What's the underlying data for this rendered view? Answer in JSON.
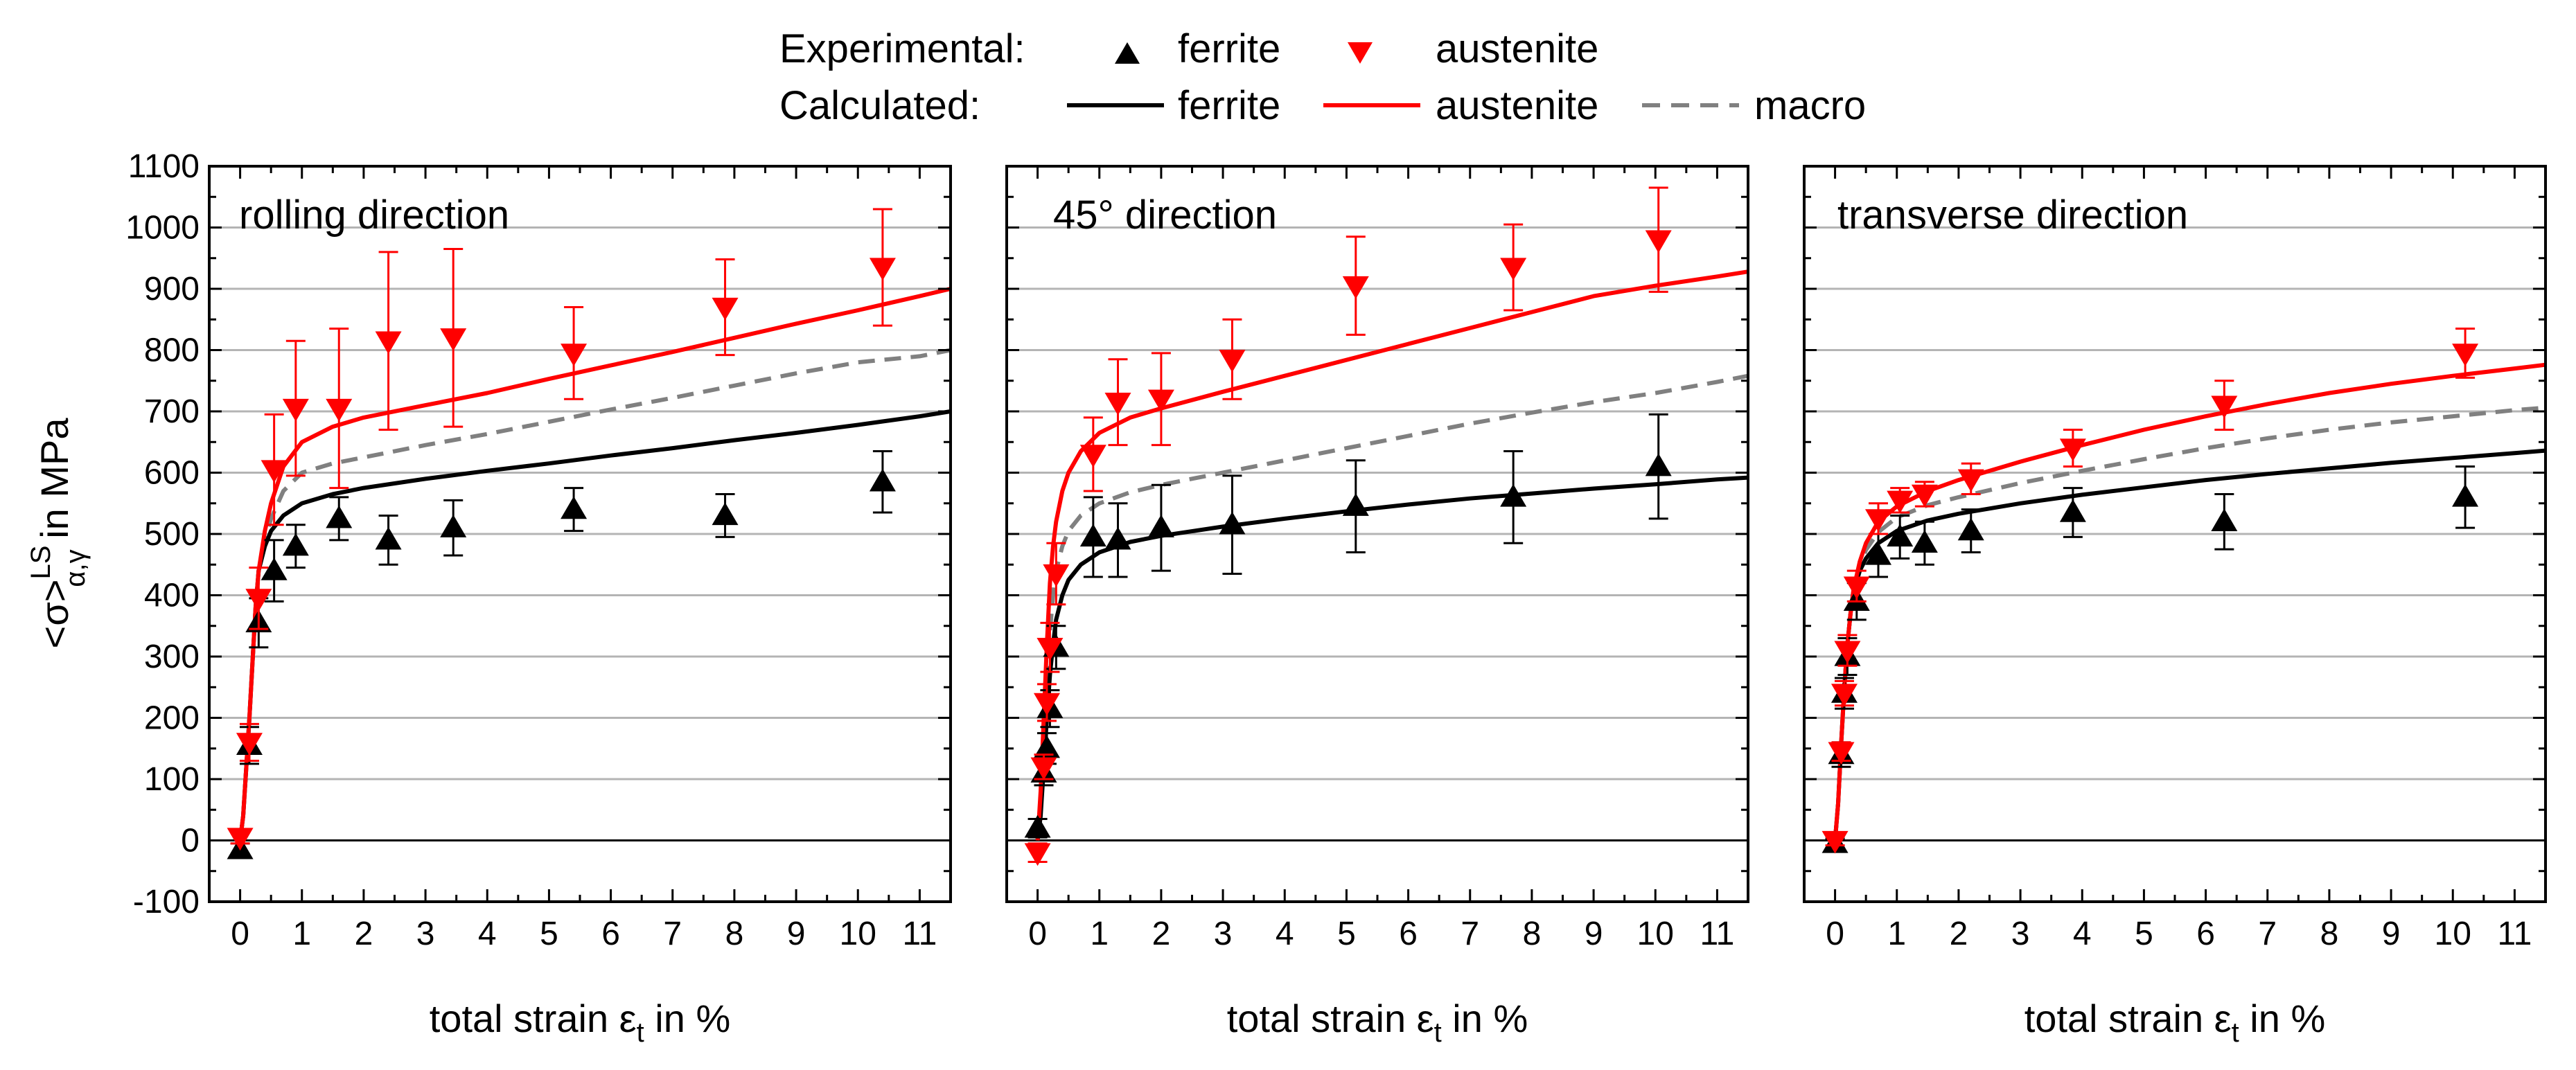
{
  "legend": {
    "experimental_label": "Experimental:",
    "calculated_label": "Calculated:",
    "exp_ferrite": "ferrite",
    "exp_austenite": "austenite",
    "calc_ferrite": "ferrite",
    "calc_austenite": "austenite",
    "calc_macro": "macro"
  },
  "colors": {
    "ferrite": "#000000",
    "austenite": "#ff0000",
    "macro": "#808080",
    "grid": "#b4b4b4"
  },
  "y_axis_label": {
    "main": "<σ>",
    "superscript": "LS",
    "subscript": "α,γ",
    "suffix": " in MPa"
  },
  "x_axis_label": {
    "prefix": "total strain ε",
    "subscript": "t",
    "suffix": " in %"
  },
  "chart_data": [
    {
      "type": "scatter",
      "title": "rolling direction",
      "xlabel": "total strain ε_t in %",
      "ylabel": "<σ>^LS_α,γ in MPa",
      "xlim": [
        -0.5,
        11.5
      ],
      "ylim": [
        -100,
        1100
      ],
      "xticks": [
        0,
        1,
        2,
        3,
        4,
        5,
        6,
        7,
        8,
        9,
        10,
        11
      ],
      "yticks": [
        -100,
        0,
        100,
        200,
        300,
        400,
        500,
        600,
        700,
        800,
        900,
        1000,
        1100
      ],
      "grid": true,
      "experimental": {
        "ferrite": [
          {
            "x": 0.0,
            "y": -15,
            "err": 10
          },
          {
            "x": 0.15,
            "y": 155,
            "err": 30
          },
          {
            "x": 0.3,
            "y": 355,
            "err": 40
          },
          {
            "x": 0.55,
            "y": 440,
            "err": 50
          },
          {
            "x": 0.9,
            "y": 480,
            "err": 35
          },
          {
            "x": 1.6,
            "y": 525,
            "err": 35
          },
          {
            "x": 2.4,
            "y": 490,
            "err": 40
          },
          {
            "x": 3.45,
            "y": 510,
            "err": 45
          },
          {
            "x": 5.4,
            "y": 540,
            "err": 35
          },
          {
            "x": 7.85,
            "y": 530,
            "err": 35
          },
          {
            "x": 10.4,
            "y": 585,
            "err": 50
          }
        ],
        "austenite": [
          {
            "x": 0.0,
            "y": 5,
            "err": 10
          },
          {
            "x": 0.15,
            "y": 160,
            "err": 30
          },
          {
            "x": 0.3,
            "y": 395,
            "err": 50
          },
          {
            "x": 0.55,
            "y": 605,
            "err": 90
          },
          {
            "x": 0.9,
            "y": 705,
            "err": 110
          },
          {
            "x": 1.6,
            "y": 705,
            "err": 130
          },
          {
            "x": 2.4,
            "y": 815,
            "err": 145
          },
          {
            "x": 3.45,
            "y": 820,
            "err": 145
          },
          {
            "x": 5.4,
            "y": 795,
            "err": 75
          },
          {
            "x": 7.85,
            "y": 870,
            "err": 78
          },
          {
            "x": 10.4,
            "y": 935,
            "err": 95
          }
        ]
      },
      "calculated": {
        "ferrite": {
          "x": [
            0,
            0.05,
            0.1,
            0.15,
            0.2,
            0.25,
            0.3,
            0.4,
            0.5,
            0.7,
            1,
            1.5,
            2,
            3,
            4,
            5,
            6,
            7,
            8,
            9,
            10,
            11,
            11.5
          ],
          "y": [
            0,
            40,
            120,
            200,
            290,
            380,
            440,
            480,
            505,
            530,
            550,
            565,
            575,
            590,
            603,
            615,
            628,
            640,
            653,
            665,
            678,
            692,
            700
          ]
        },
        "austenite": {
          "x": [
            0,
            0.05,
            0.1,
            0.15,
            0.2,
            0.25,
            0.3,
            0.4,
            0.5,
            0.7,
            1,
            1.5,
            2,
            3,
            4,
            5,
            6,
            7,
            8,
            9,
            10,
            11,
            11.5
          ],
          "y": [
            0,
            40,
            120,
            200,
            290,
            380,
            440,
            505,
            550,
            610,
            650,
            675,
            690,
            710,
            730,
            753,
            775,
            797,
            820,
            843,
            865,
            888,
            900
          ]
        },
        "macro": {
          "x": [
            0,
            0.05,
            0.1,
            0.15,
            0.2,
            0.25,
            0.3,
            0.4,
            0.5,
            0.7,
            1,
            1.5,
            2,
            3,
            4,
            5,
            6,
            7,
            8,
            9,
            10,
            11,
            11.5
          ],
          "y": [
            0,
            40,
            120,
            200,
            290,
            380,
            440,
            490,
            525,
            570,
            600,
            615,
            625,
            645,
            663,
            683,
            703,
            722,
            742,
            762,
            780,
            790,
            800
          ]
        }
      }
    },
    {
      "type": "scatter",
      "title": "45° direction",
      "xlabel": "total strain ε_t in %",
      "ylabel": "<σ>^LS_α,γ in MPa",
      "xlim": [
        -0.5,
        11.5
      ],
      "ylim": [
        -100,
        1100
      ],
      "xticks": [
        0,
        1,
        2,
        3,
        4,
        5,
        6,
        7,
        8,
        9,
        10,
        11
      ],
      "yticks": [
        -100,
        0,
        100,
        200,
        300,
        400,
        500,
        600,
        700,
        800,
        900,
        1000,
        1100
      ],
      "grid": true,
      "experimental": {
        "ferrite": [
          {
            "x": 0.0,
            "y": 20,
            "err": 15
          },
          {
            "x": 0.1,
            "y": 110,
            "err": 20
          },
          {
            "x": 0.15,
            "y": 150,
            "err": 25
          },
          {
            "x": 0.2,
            "y": 215,
            "err": 30
          },
          {
            "x": 0.3,
            "y": 315,
            "err": 35
          },
          {
            "x": 0.9,
            "y": 495,
            "err": 65
          },
          {
            "x": 1.3,
            "y": 490,
            "err": 60
          },
          {
            "x": 2.0,
            "y": 510,
            "err": 70
          },
          {
            "x": 3.15,
            "y": 515,
            "err": 80
          },
          {
            "x": 5.15,
            "y": 545,
            "err": 75
          },
          {
            "x": 7.7,
            "y": 560,
            "err": 75
          },
          {
            "x": 10.05,
            "y": 610,
            "err": 85
          }
        ],
        "austenite": [
          {
            "x": 0.0,
            "y": -20,
            "err": 15
          },
          {
            "x": 0.1,
            "y": 120,
            "err": 20
          },
          {
            "x": 0.15,
            "y": 225,
            "err": 30
          },
          {
            "x": 0.2,
            "y": 315,
            "err": 40
          },
          {
            "x": 0.3,
            "y": 435,
            "err": 50
          },
          {
            "x": 0.9,
            "y": 630,
            "err": 60
          },
          {
            "x": 1.3,
            "y": 715,
            "err": 70
          },
          {
            "x": 2.0,
            "y": 720,
            "err": 75
          },
          {
            "x": 3.15,
            "y": 785,
            "err": 65
          },
          {
            "x": 5.15,
            "y": 905,
            "err": 80
          },
          {
            "x": 7.7,
            "y": 935,
            "err": 70
          },
          {
            "x": 10.05,
            "y": 980,
            "err": 85
          }
        ]
      },
      "calculated": {
        "ferrite": {
          "x": [
            0,
            0.05,
            0.1,
            0.15,
            0.2,
            0.25,
            0.3,
            0.4,
            0.5,
            0.7,
            1,
            1.5,
            2,
            3,
            4,
            5,
            6,
            7,
            8,
            9,
            10,
            11,
            11.5
          ],
          "y": [
            0,
            40,
            120,
            200,
            270,
            320,
            360,
            400,
            425,
            450,
            470,
            487,
            497,
            512,
            525,
            537,
            548,
            558,
            566,
            574,
            581,
            589,
            592
          ]
        },
        "austenite": {
          "x": [
            0,
            0.05,
            0.1,
            0.15,
            0.2,
            0.25,
            0.3,
            0.4,
            0.5,
            0.7,
            1,
            1.5,
            2,
            3,
            4,
            5,
            6,
            7,
            8,
            9,
            10,
            11,
            11.5
          ],
          "y": [
            0,
            80,
            200,
            320,
            420,
            480,
            520,
            570,
            600,
            635,
            665,
            690,
            705,
            732,
            758,
            784,
            810,
            836,
            862,
            888,
            905,
            920,
            928
          ]
        },
        "macro": {
          "x": [
            0,
            0.05,
            0.1,
            0.15,
            0.2,
            0.25,
            0.3,
            0.4,
            0.5,
            0.7,
            1,
            1.5,
            2,
            3,
            4,
            5,
            6,
            7,
            8,
            9,
            10,
            11,
            11.5
          ],
          "y": [
            0,
            60,
            160,
            260,
            340,
            400,
            440,
            480,
            505,
            530,
            550,
            568,
            580,
            600,
            620,
            640,
            660,
            680,
            698,
            715,
            730,
            748,
            758
          ]
        }
      }
    },
    {
      "type": "scatter",
      "title": "transverse direction",
      "xlabel": "total strain ε_t in %",
      "ylabel": "<σ>^LS_α,γ in MPa",
      "xlim": [
        -0.5,
        11.5
      ],
      "ylim": [
        -100,
        1100
      ],
      "xticks": [
        0,
        1,
        2,
        3,
        4,
        5,
        6,
        7,
        8,
        9,
        10,
        11
      ],
      "yticks": [
        -100,
        0,
        100,
        200,
        300,
        400,
        500,
        600,
        700,
        800,
        900,
        1000,
        1100
      ],
      "grid": true,
      "experimental": {
        "ferrite": [
          {
            "x": 0.0,
            "y": -5,
            "err": 8
          },
          {
            "x": 0.1,
            "y": 140,
            "err": 20
          },
          {
            "x": 0.15,
            "y": 240,
            "err": 25
          },
          {
            "x": 0.2,
            "y": 300,
            "err": 30
          },
          {
            "x": 0.35,
            "y": 390,
            "err": 30
          },
          {
            "x": 0.7,
            "y": 465,
            "err": 35
          },
          {
            "x": 1.05,
            "y": 495,
            "err": 35
          },
          {
            "x": 1.45,
            "y": 485,
            "err": 35
          },
          {
            "x": 2.2,
            "y": 505,
            "err": 35
          },
          {
            "x": 3.85,
            "y": 535,
            "err": 40
          },
          {
            "x": 6.3,
            "y": 520,
            "err": 45
          },
          {
            "x": 10.2,
            "y": 560,
            "err": 50
          }
        ],
        "austenite": [
          {
            "x": 0.0,
            "y": 0,
            "err": 8
          },
          {
            "x": 0.1,
            "y": 145,
            "err": 15
          },
          {
            "x": 0.15,
            "y": 240,
            "err": 20
          },
          {
            "x": 0.2,
            "y": 310,
            "err": 25
          },
          {
            "x": 0.35,
            "y": 415,
            "err": 25
          },
          {
            "x": 0.7,
            "y": 525,
            "err": 25
          },
          {
            "x": 1.05,
            "y": 555,
            "err": 20
          },
          {
            "x": 1.45,
            "y": 565,
            "err": 20
          },
          {
            "x": 2.2,
            "y": 590,
            "err": 25
          },
          {
            "x": 3.85,
            "y": 640,
            "err": 30
          },
          {
            "x": 6.3,
            "y": 710,
            "err": 40
          },
          {
            "x": 10.2,
            "y": 795,
            "err": 40
          }
        ]
      },
      "calculated": {
        "ferrite": {
          "x": [
            0,
            0.05,
            0.1,
            0.15,
            0.2,
            0.25,
            0.3,
            0.4,
            0.5,
            0.7,
            1,
            1.5,
            2,
            3,
            4,
            5,
            6,
            7,
            8,
            9,
            10,
            11,
            11.5
          ],
          "y": [
            0,
            60,
            160,
            250,
            320,
            370,
            405,
            440,
            460,
            485,
            505,
            522,
            533,
            550,
            564,
            576,
            588,
            598,
            607,
            616,
            624,
            632,
            636
          ]
        },
        "austenite": {
          "x": [
            0,
            0.05,
            0.1,
            0.15,
            0.2,
            0.25,
            0.3,
            0.4,
            0.5,
            0.7,
            1,
            1.5,
            2,
            3,
            4,
            5,
            6,
            7,
            8,
            9,
            10,
            11,
            11.5
          ],
          "y": [
            0,
            60,
            160,
            250,
            320,
            370,
            410,
            455,
            485,
            520,
            545,
            570,
            588,
            618,
            645,
            670,
            692,
            712,
            730,
            745,
            758,
            770,
            776
          ]
        },
        "macro": {
          "x": [
            0,
            0.05,
            0.1,
            0.15,
            0.2,
            0.25,
            0.3,
            0.4,
            0.5,
            0.7,
            1,
            1.5,
            2,
            3,
            4,
            5,
            6,
            7,
            8,
            9,
            10,
            11,
            11.5
          ],
          "y": [
            0,
            60,
            160,
            250,
            320,
            370,
            408,
            448,
            474,
            503,
            527,
            547,
            560,
            583,
            603,
            622,
            640,
            656,
            670,
            682,
            692,
            702,
            706
          ]
        }
      }
    }
  ]
}
